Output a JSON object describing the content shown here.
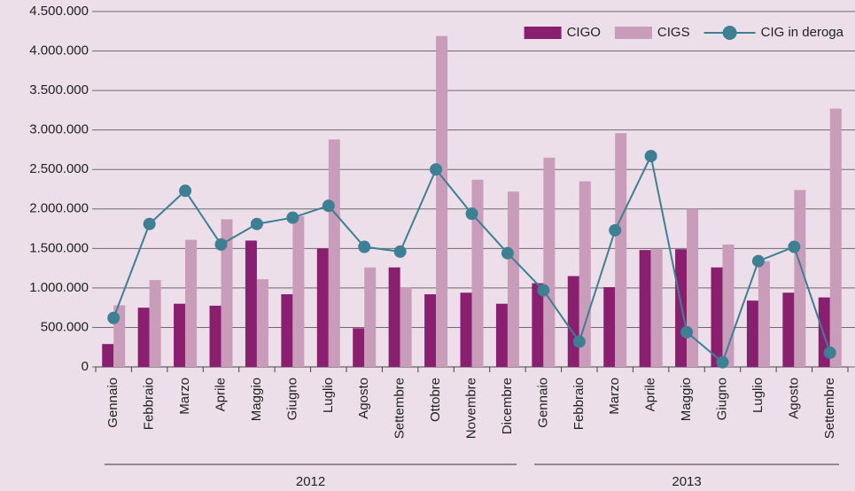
{
  "chart_data": {
    "type": "bar-line",
    "categories": [
      "Gennaio",
      "Febbraio",
      "Marzo",
      "Aprile",
      "Maggio",
      "Giugno",
      "Luglio",
      "Agosto",
      "Settembre",
      "Ottobre",
      "Novembre",
      "Dicembre",
      "Gennaio",
      "Febbraio",
      "Marzo",
      "Aprile",
      "Maggio",
      "Giugno",
      "Luglio",
      "Agosto",
      "Settembre"
    ],
    "groups": [
      "2012",
      "2013"
    ],
    "series": [
      {
        "name": "CIGO",
        "type": "bar",
        "color": "#8b1f6f",
        "values": [
          290000,
          750000,
          800000,
          775000,
          1600000,
          920000,
          1500000,
          490000,
          1260000,
          920000,
          940000,
          800000,
          1060000,
          1150000,
          1010000,
          1480000,
          1490000,
          1260000,
          840000,
          940000,
          880000
        ]
      },
      {
        "name": "CIGS",
        "type": "bar",
        "color": "#c99cba",
        "values": [
          780000,
          1100000,
          1610000,
          1870000,
          1110000,
          1910000,
          2880000,
          1260000,
          1010000,
          4190000,
          2370000,
          2220000,
          2650000,
          2350000,
          2960000,
          1490000,
          2000000,
          1550000,
          1340000,
          2240000,
          3270000
        ]
      },
      {
        "name": "CIG in deroga",
        "type": "line",
        "color": "#3d7f93",
        "values": [
          620000,
          1810000,
          2230000,
          1550000,
          1810000,
          1890000,
          2040000,
          1520000,
          1460000,
          2500000,
          1940000,
          1440000,
          970000,
          320000,
          1730000,
          2670000,
          440000,
          60000,
          1340000,
          1520000,
          180000
        ]
      }
    ],
    "ylim": [
      0,
      4500000
    ],
    "yticks": [
      0,
      {
        "value": 500000,
        "label": "500.000"
      },
      {
        "value": 1000000,
        "label": "1.000.000"
      },
      {
        "value": 1500000,
        "label": "1.500.000"
      },
      {
        "value": 2000000,
        "label": "2.000.000"
      },
      {
        "value": 2500000,
        "label": "2.500.000"
      },
      {
        "value": 3000000,
        "label": "3.000.000"
      },
      {
        "value": 3500000,
        "label": "3.500.000"
      },
      {
        "value": 4000000,
        "label": "4.000.000"
      },
      {
        "value": 4500000,
        "label": "4.500.000"
      }
    ],
    "grid": true,
    "legend": "top-right"
  }
}
